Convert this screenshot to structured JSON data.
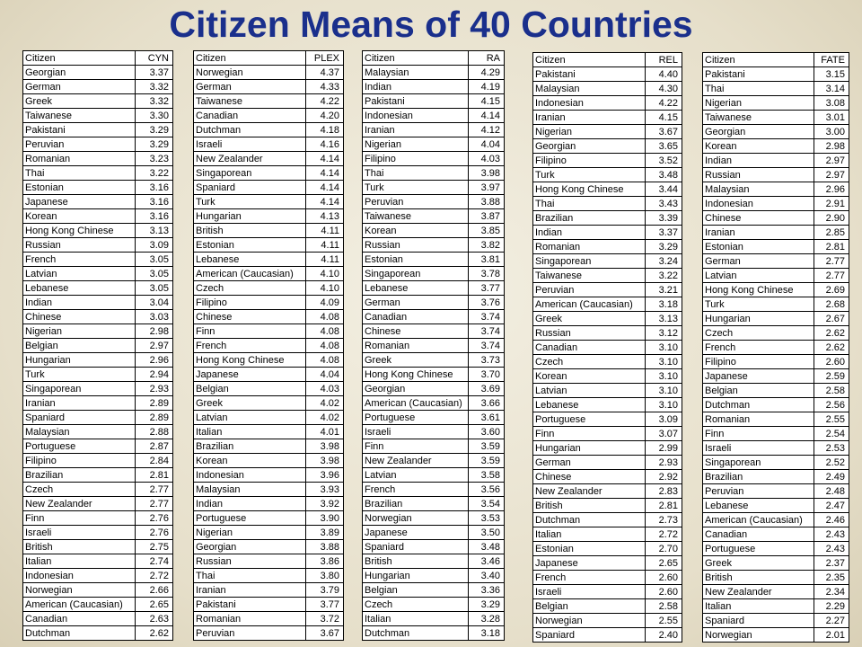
{
  "title": "Citizen Means of 40 Countries",
  "tables": [
    {
      "header": [
        "Citizen",
        "CYN"
      ],
      "rows": [
        [
          "Georgian",
          "3.37"
        ],
        [
          "German",
          "3.32"
        ],
        [
          "Greek",
          "3.32"
        ],
        [
          "Taiwanese",
          "3.30"
        ],
        [
          "Pakistani",
          "3.29"
        ],
        [
          "Peruvian",
          "3.29"
        ],
        [
          "Romanian",
          "3.23"
        ],
        [
          "Thai",
          "3.22"
        ],
        [
          "Estonian",
          "3.16"
        ],
        [
          "Japanese",
          "3.16"
        ],
        [
          "Korean",
          "3.16"
        ],
        [
          "Hong Kong Chinese",
          "3.13"
        ],
        [
          "Russian",
          "3.09"
        ],
        [
          "French",
          "3.05"
        ],
        [
          "Latvian",
          "3.05"
        ],
        [
          "Lebanese",
          "3.05"
        ],
        [
          "Indian",
          "3.04"
        ],
        [
          "Chinese",
          "3.03"
        ],
        [
          "Nigerian",
          "2.98"
        ],
        [
          "Belgian",
          "2.97"
        ],
        [
          "Hungarian",
          "2.96"
        ],
        [
          "Turk",
          "2.94"
        ],
        [
          "Singaporean",
          "2.93"
        ],
        [
          "Iranian",
          "2.89"
        ],
        [
          "Spaniard",
          "2.89"
        ],
        [
          "Malaysian",
          "2.88"
        ],
        [
          "Portuguese",
          "2.87"
        ],
        [
          "Filipino",
          "2.84"
        ],
        [
          "Brazilian",
          "2.81"
        ],
        [
          "Czech",
          "2.77"
        ],
        [
          "New Zealander",
          "2.77"
        ],
        [
          "Finn",
          "2.76"
        ],
        [
          "Israeli",
          "2.76"
        ],
        [
          "British",
          "2.75"
        ],
        [
          "Italian",
          "2.74"
        ],
        [
          "Indonesian",
          "2.72"
        ],
        [
          "Norwegian",
          "2.66"
        ],
        [
          "American (Caucasian)",
          "2.65"
        ],
        [
          "Canadian",
          "2.63"
        ],
        [
          "Dutchman",
          "2.62"
        ]
      ]
    },
    {
      "header": [
        "Citizen",
        "PLEX"
      ],
      "rows": [
        [
          "Norwegian",
          "4.37"
        ],
        [
          "German",
          "4.33"
        ],
        [
          "Taiwanese",
          "4.22"
        ],
        [
          "Canadian",
          "4.20"
        ],
        [
          "Dutchman",
          "4.18"
        ],
        [
          "Israeli",
          "4.16"
        ],
        [
          "New Zealander",
          "4.14"
        ],
        [
          "Singaporean",
          "4.14"
        ],
        [
          "Spaniard",
          "4.14"
        ],
        [
          "Turk",
          "4.14"
        ],
        [
          "Hungarian",
          "4.13"
        ],
        [
          "British",
          "4.11"
        ],
        [
          "Estonian",
          "4.11"
        ],
        [
          "Lebanese",
          "4.11"
        ],
        [
          "American (Caucasian)",
          "4.10"
        ],
        [
          "Czech",
          "4.10"
        ],
        [
          "Filipino",
          "4.09"
        ],
        [
          "Chinese",
          "4.08"
        ],
        [
          "Finn",
          "4.08"
        ],
        [
          "French",
          "4.08"
        ],
        [
          "Hong Kong Chinese",
          "4.08"
        ],
        [
          "Japanese",
          "4.04"
        ],
        [
          "Belgian",
          "4.03"
        ],
        [
          "Greek",
          "4.02"
        ],
        [
          "Latvian",
          "4.02"
        ],
        [
          "Italian",
          "4.01"
        ],
        [
          "Brazilian",
          "3.98"
        ],
        [
          "Korean",
          "3.98"
        ],
        [
          "Indonesian",
          "3.96"
        ],
        [
          "Malaysian",
          "3.93"
        ],
        [
          "Indian",
          "3.92"
        ],
        [
          "Portuguese",
          "3.90"
        ],
        [
          "Nigerian",
          "3.89"
        ],
        [
          "Georgian",
          "3.88"
        ],
        [
          "Russian",
          "3.86"
        ],
        [
          "Thai",
          "3.80"
        ],
        [
          "Iranian",
          "3.79"
        ],
        [
          "Pakistani",
          "3.77"
        ],
        [
          "Romanian",
          "3.72"
        ],
        [
          "Peruvian",
          "3.67"
        ]
      ]
    },
    {
      "header": [
        "Citizen",
        "RA"
      ],
      "rows": [
        [
          "Malaysian",
          "4.29"
        ],
        [
          "Indian",
          "4.19"
        ],
        [
          "Pakistani",
          "4.15"
        ],
        [
          "Indonesian",
          "4.14"
        ],
        [
          "Iranian",
          "4.12"
        ],
        [
          "Nigerian",
          "4.04"
        ],
        [
          "Filipino",
          "4.03"
        ],
        [
          "Thai",
          "3.98"
        ],
        [
          "Turk",
          "3.97"
        ],
        [
          "Peruvian",
          "3.88"
        ],
        [
          "Taiwanese",
          "3.87"
        ],
        [
          "Korean",
          "3.85"
        ],
        [
          "Russian",
          "3.82"
        ],
        [
          "Estonian",
          "3.81"
        ],
        [
          "Singaporean",
          "3.78"
        ],
        [
          "Lebanese",
          "3.77"
        ],
        [
          "German",
          "3.76"
        ],
        [
          "Canadian",
          "3.74"
        ],
        [
          "Chinese",
          "3.74"
        ],
        [
          "Romanian",
          "3.74"
        ],
        [
          "Greek",
          "3.73"
        ],
        [
          "Hong Kong Chinese",
          "3.70"
        ],
        [
          "Georgian",
          "3.69"
        ],
        [
          "American (Caucasian)",
          "3.66"
        ],
        [
          "Portuguese",
          "3.61"
        ],
        [
          "Israeli",
          "3.60"
        ],
        [
          "Finn",
          "3.59"
        ],
        [
          "New Zealander",
          "3.59"
        ],
        [
          "Latvian",
          "3.58"
        ],
        [
          "French",
          "3.56"
        ],
        [
          "Brazilian",
          "3.54"
        ],
        [
          "Norwegian",
          "3.53"
        ],
        [
          "Japanese",
          "3.50"
        ],
        [
          "Spaniard",
          "3.48"
        ],
        [
          "British",
          "3.46"
        ],
        [
          "Hungarian",
          "3.40"
        ],
        [
          "Belgian",
          "3.36"
        ],
        [
          "Czech",
          "3.29"
        ],
        [
          "Italian",
          "3.28"
        ],
        [
          "Dutchman",
          "3.18"
        ]
      ]
    },
    {
      "header": [
        "Citizen",
        "REL"
      ],
      "rows": [
        [
          "Pakistani",
          "4.40"
        ],
        [
          "Malaysian",
          "4.30"
        ],
        [
          "Indonesian",
          "4.22"
        ],
        [
          "Iranian",
          "4.15"
        ],
        [
          "Nigerian",
          "3.67"
        ],
        [
          "Georgian",
          "3.65"
        ],
        [
          "Filipino",
          "3.52"
        ],
        [
          "Turk",
          "3.48"
        ],
        [
          "Hong Kong Chinese",
          "3.44"
        ],
        [
          "Thai",
          "3.43"
        ],
        [
          "Brazilian",
          "3.39"
        ],
        [
          "Indian",
          "3.37"
        ],
        [
          "Romanian",
          "3.29"
        ],
        [
          "Singaporean",
          "3.24"
        ],
        [
          "Taiwanese",
          "3.22"
        ],
        [
          "Peruvian",
          "3.21"
        ],
        [
          "American (Caucasian)",
          "3.18"
        ],
        [
          "Greek",
          "3.13"
        ],
        [
          "Russian",
          "3.12"
        ],
        [
          "Canadian",
          "3.10"
        ],
        [
          "Czech",
          "3.10"
        ],
        [
          "Korean",
          "3.10"
        ],
        [
          "Latvian",
          "3.10"
        ],
        [
          "Lebanese",
          "3.10"
        ],
        [
          "Portuguese",
          "3.09"
        ],
        [
          "Finn",
          "3.07"
        ],
        [
          "Hungarian",
          "2.99"
        ],
        [
          "German",
          "2.93"
        ],
        [
          "Chinese",
          "2.92"
        ],
        [
          "New Zealander",
          "2.83"
        ],
        [
          "British",
          "2.81"
        ],
        [
          "Dutchman",
          "2.73"
        ],
        [
          "Italian",
          "2.72"
        ],
        [
          "Estonian",
          "2.70"
        ],
        [
          "Japanese",
          "2.65"
        ],
        [
          "French",
          "2.60"
        ],
        [
          "Israeli",
          "2.60"
        ],
        [
          "Belgian",
          "2.58"
        ],
        [
          "Norwegian",
          "2.55"
        ],
        [
          "Spaniard",
          "2.40"
        ]
      ]
    },
    {
      "header": [
        "Citizen",
        "FATE"
      ],
      "rows": [
        [
          "Pakistani",
          "3.15"
        ],
        [
          "Thai",
          "3.14"
        ],
        [
          "Nigerian",
          "3.08"
        ],
        [
          "Taiwanese",
          "3.01"
        ],
        [
          "Georgian",
          "3.00"
        ],
        [
          "Korean",
          "2.98"
        ],
        [
          "Indian",
          "2.97"
        ],
        [
          "Russian",
          "2.97"
        ],
        [
          "Malaysian",
          "2.96"
        ],
        [
          "Indonesian",
          "2.91"
        ],
        [
          "Chinese",
          "2.90"
        ],
        [
          "Iranian",
          "2.85"
        ],
        [
          "Estonian",
          "2.81"
        ],
        [
          "German",
          "2.77"
        ],
        [
          "Latvian",
          "2.77"
        ],
        [
          "Hong Kong Chinese",
          "2.69"
        ],
        [
          "Turk",
          "2.68"
        ],
        [
          "Hungarian",
          "2.67"
        ],
        [
          "Czech",
          "2.62"
        ],
        [
          "French",
          "2.62"
        ],
        [
          "Filipino",
          "2.60"
        ],
        [
          "Japanese",
          "2.59"
        ],
        [
          "Belgian",
          "2.58"
        ],
        [
          "Dutchman",
          "2.56"
        ],
        [
          "Romanian",
          "2.55"
        ],
        [
          "Finn",
          "2.54"
        ],
        [
          "Israeli",
          "2.53"
        ],
        [
          "Singaporean",
          "2.52"
        ],
        [
          "Brazilian",
          "2.49"
        ],
        [
          "Peruvian",
          "2.48"
        ],
        [
          "Lebanese",
          "2.47"
        ],
        [
          "American (Caucasian)",
          "2.46"
        ],
        [
          "Canadian",
          "2.43"
        ],
        [
          "Portuguese",
          "2.43"
        ],
        [
          "Greek",
          "2.37"
        ],
        [
          "British",
          "2.35"
        ],
        [
          "New Zealander",
          "2.34"
        ],
        [
          "Italian",
          "2.29"
        ],
        [
          "Spaniard",
          "2.27"
        ],
        [
          "Norwegian",
          "2.01"
        ]
      ]
    }
  ]
}
